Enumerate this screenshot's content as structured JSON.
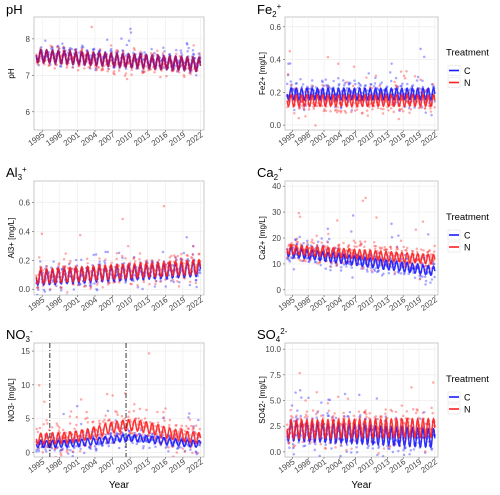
{
  "colors": {
    "C": "#1a1aff",
    "N": "#ff2020",
    "overlap": "#a0106a",
    "dash": "#222222"
  },
  "legend": {
    "title": "Treatment",
    "items": [
      "C",
      "N"
    ]
  },
  "chart_data": [
    {
      "type": "scatter",
      "id": "ph",
      "title": "pH",
      "title_sup": "",
      "ylabel": "pH",
      "xlabel": "",
      "ylim": [
        5.5,
        8.6
      ],
      "yticks": [
        6,
        7,
        8
      ],
      "xlim": [
        1993.6,
        2022.6
      ],
      "xticks": [
        1995,
        1998,
        2001,
        2004,
        2007,
        2010,
        2013,
        2016,
        2019,
        2022
      ],
      "series": [
        {
          "name": "C",
          "mean": 7.55,
          "trend": -0.008,
          "amp": 0.16,
          "noise": 0.18
        },
        {
          "name": "N",
          "mean": 7.5,
          "trend": -0.009,
          "amp": 0.16,
          "noise": 0.2
        }
      ],
      "legend": false
    },
    {
      "type": "scatter",
      "id": "fe",
      "title": "Fe",
      "title_sup": "+",
      "title_sub": "2",
      "ylabel": "Fe2+ [mg/L]",
      "xlabel": "",
      "ylim": [
        -0.03,
        0.66
      ],
      "yticks": [
        0.0,
        0.2,
        0.4,
        0.6
      ],
      "xlim": [
        1993.6,
        2022.6
      ],
      "xticks": [
        1995,
        1998,
        2001,
        2004,
        2007,
        2010,
        2013,
        2016,
        2019,
        2022
      ],
      "series": [
        {
          "name": "C",
          "mean": 0.19,
          "trend": 0.0,
          "amp": 0.035,
          "noise": 0.06
        },
        {
          "name": "N",
          "mean": 0.15,
          "trend": 0.0,
          "amp": 0.035,
          "noise": 0.06
        }
      ],
      "legend": true
    },
    {
      "type": "scatter",
      "id": "al",
      "title": "Al",
      "title_sup": "+",
      "title_sub": "3",
      "ylabel": "Al3+ [mg/L]",
      "xlabel": "",
      "ylim": [
        -0.04,
        0.75
      ],
      "yticks": [
        0.0,
        0.2,
        0.4,
        0.6
      ],
      "xlim": [
        1993.6,
        2022.6
      ],
      "xticks": [
        1995,
        1998,
        2001,
        2004,
        2007,
        2010,
        2013,
        2016,
        2019,
        2022
      ],
      "series": [
        {
          "name": "C",
          "mean": 0.08,
          "trend": 0.0022,
          "amp": 0.05,
          "noise": 0.06
        },
        {
          "name": "N",
          "mean": 0.09,
          "trend": 0.0024,
          "amp": 0.05,
          "noise": 0.06
        }
      ],
      "legend": false
    },
    {
      "type": "scatter",
      "id": "ca",
      "title": "Ca",
      "title_sup": "+",
      "title_sub": "2",
      "ylabel": "Ca2+ [mg/L]",
      "xlabel": "",
      "ylim": [
        -2,
        42
      ],
      "yticks": [
        0,
        10,
        20,
        30,
        40
      ],
      "xlim": [
        1993.6,
        2022.6
      ],
      "xticks": [
        1995,
        1998,
        2001,
        2004,
        2007,
        2010,
        2013,
        2016,
        2019,
        2022
      ],
      "series": [
        {
          "name": "C",
          "mean": 14.5,
          "trend": -0.27,
          "amp": 1.8,
          "noise": 3.5
        },
        {
          "name": "N",
          "mean": 15.5,
          "trend": -0.14,
          "amp": 1.8,
          "noise": 3.8
        }
      ],
      "legend": true
    },
    {
      "type": "scatter",
      "id": "no3",
      "title": "NO",
      "title_sup": "-",
      "title_sub": "3",
      "ylabel": "NO3- [mg/L]",
      "xlabel": "Year",
      "ylim": [
        -0.7,
        16.2
      ],
      "yticks": [
        0,
        5,
        10,
        15
      ],
      "xlim": [
        1993.6,
        2022.6
      ],
      "xticks": [
        1995,
        1998,
        2001,
        2004,
        2007,
        2010,
        2013,
        2016,
        2019,
        2022
      ],
      "vlines": [
        1996.3,
        2009.3
      ],
      "series": [
        {
          "name": "C",
          "mean": 1.2,
          "hump": 0.9,
          "amp": 0.5,
          "noise": 1.0
        },
        {
          "name": "N",
          "mean": 2.0,
          "hump": 2.0,
          "amp": 0.8,
          "noise": 1.8
        }
      ],
      "legend": false
    },
    {
      "type": "scatter",
      "id": "so4",
      "title": "SO",
      "title_sup": "2-",
      "title_sub": "4",
      "ylabel": "SO42- [mg/L]",
      "xlabel": "Year",
      "ylim": [
        -0.5,
        10.6
      ],
      "yticks": [
        0.0,
        2.5,
        5.0,
        7.5,
        10.0
      ],
      "xlim": [
        1993.6,
        2022.6
      ],
      "xticks": [
        1995,
        1998,
        2001,
        2004,
        2007,
        2010,
        2013,
        2016,
        2019,
        2022
      ],
      "series": [
        {
          "name": "C",
          "mean": 2.0,
          "trend": -0.025,
          "amp": 0.9,
          "noise": 1.2
        },
        {
          "name": "N",
          "mean": 2.2,
          "trend": 0.005,
          "amp": 0.9,
          "noise": 1.3
        }
      ],
      "legend": true
    }
  ]
}
